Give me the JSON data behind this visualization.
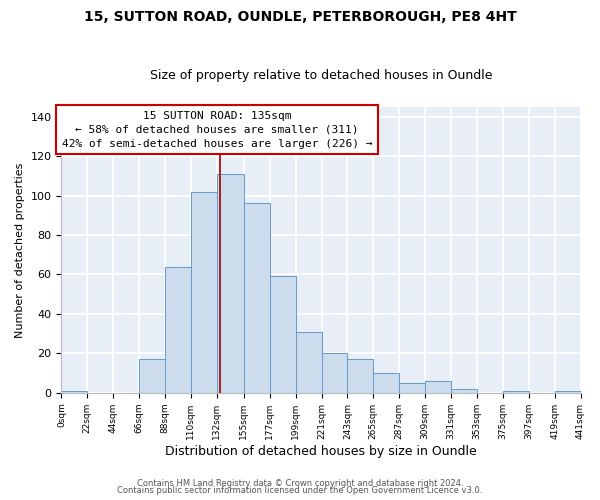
{
  "title_line1": "15, SUTTON ROAD, OUNDLE, PETERBOROUGH, PE8 4HT",
  "title_line2": "Size of property relative to detached houses in Oundle",
  "xlabel": "Distribution of detached houses by size in Oundle",
  "ylabel": "Number of detached properties",
  "bar_edges": [
    0,
    22,
    44,
    66,
    88,
    110,
    132,
    155,
    177,
    199,
    221,
    243,
    265,
    287,
    309,
    331,
    353,
    375,
    397,
    419,
    441
  ],
  "bar_heights": [
    1,
    0,
    0,
    17,
    64,
    102,
    111,
    96,
    59,
    31,
    20,
    17,
    10,
    5,
    6,
    2,
    0,
    1,
    0,
    1
  ],
  "bar_color": "#ccdcec",
  "bar_edgecolor": "#6699cc",
  "bar_linewidth": 0.7,
  "property_value": 135,
  "vline_color": "#990000",
  "vline_linewidth": 1.2,
  "annotation_title": "15 SUTTON ROAD: 135sqm",
  "annotation_line2": "← 58% of detached houses are smaller (311)",
  "annotation_line3": "42% of semi-detached houses are larger (226) →",
  "annotation_box_edgecolor": "#cc0000",
  "annotation_box_facecolor": "#ffffff",
  "ylim": [
    0,
    145
  ],
  "xlim": [
    0,
    441
  ],
  "tick_labels": [
    "0sqm",
    "22sqm",
    "44sqm",
    "66sqm",
    "88sqm",
    "110sqm",
    "132sqm",
    "155sqm",
    "177sqm",
    "199sqm",
    "221sqm",
    "243sqm",
    "265sqm",
    "287sqm",
    "309sqm",
    "331sqm",
    "353sqm",
    "375sqm",
    "397sqm",
    "419sqm",
    "441sqm"
  ],
  "tick_positions": [
    0,
    22,
    44,
    66,
    88,
    110,
    132,
    155,
    177,
    199,
    221,
    243,
    265,
    287,
    309,
    331,
    353,
    375,
    397,
    419,
    441
  ],
  "ytick_values": [
    0,
    20,
    40,
    60,
    80,
    100,
    120,
    140
  ],
  "footnote1": "Contains HM Land Registry data © Crown copyright and database right 2024.",
  "footnote2": "Contains public sector information licensed under the Open Government Licence v3.0.",
  "background_color": "#ffffff",
  "plot_background": "#e8eef5",
  "grid_color": "#ffffff",
  "grid_linewidth": 1.2,
  "title1_fontsize": 10,
  "title2_fontsize": 9,
  "xlabel_fontsize": 9,
  "ylabel_fontsize": 8,
  "xtick_fontsize": 6.5,
  "ytick_fontsize": 8,
  "footnote_fontsize": 6,
  "annot_fontsize": 8
}
